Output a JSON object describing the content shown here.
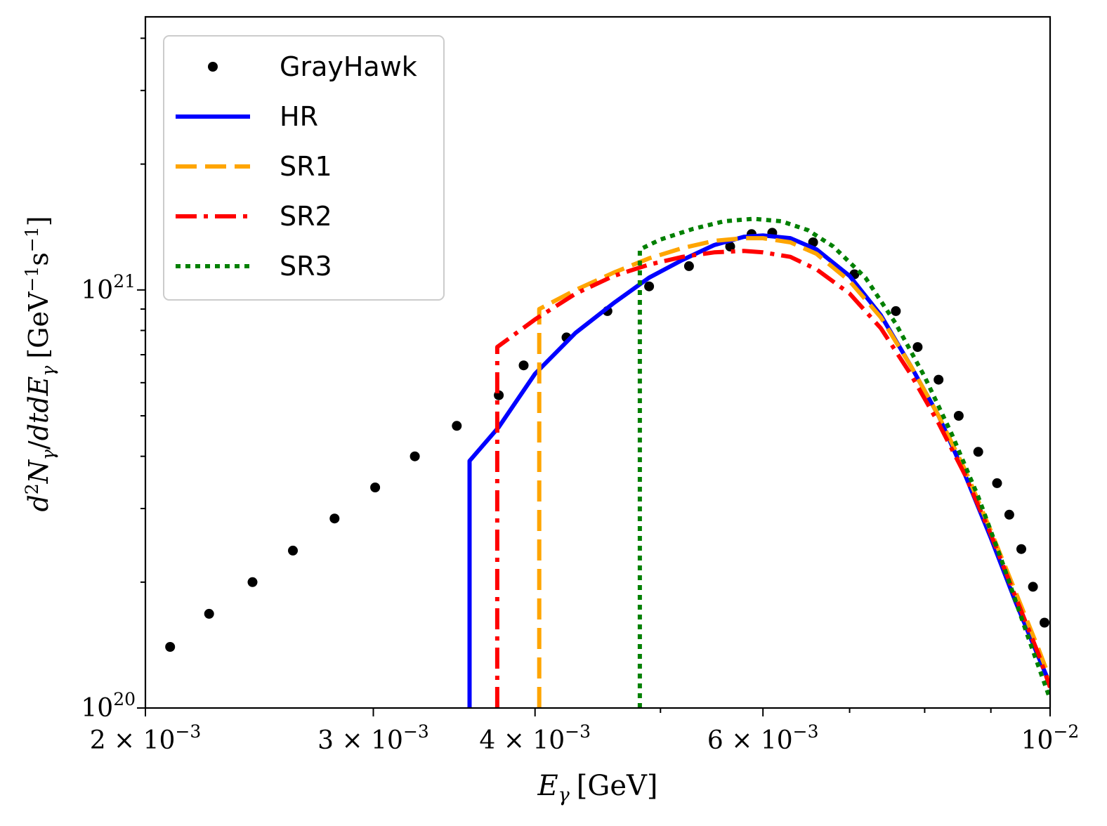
{
  "chart_data": {
    "type": "line",
    "title": "",
    "xlabel": {
      "symbol": "E",
      "sub": "γ",
      "unit": "[GeV]"
    },
    "ylabel": {
      "d": "d",
      "sup": "2",
      "N": "N",
      "sub": "γ",
      "slash": "/",
      "dt": "dtdE",
      "subE": "γ",
      "unitA": "[GeV",
      "supA": "−1",
      "unitB": "s",
      "supB": "−1",
      "close": "]"
    },
    "x_scale": "log",
    "y_scale": "log",
    "xlim": [
      0.002,
      0.01
    ],
    "ylim": [
      1e+20,
      4.5e+21
    ],
    "grid": false,
    "legend_position": "top-left",
    "xticks": [
      {
        "value": 0.002,
        "mant": "2 × 10",
        "exp": "−3"
      },
      {
        "value": 0.003,
        "mant": "3 × 10",
        "exp": "−3"
      },
      {
        "value": 0.004,
        "mant": "4 × 10",
        "exp": "−3"
      },
      {
        "value": 0.006,
        "mant": "6 × 10",
        "exp": "−3"
      },
      {
        "value": 0.01,
        "mant": "10",
        "exp": "−2"
      }
    ],
    "yticks": [
      {
        "value": 1e+20,
        "mant": "10",
        "exp": "20"
      },
      {
        "value": 1e+21,
        "mant": "10",
        "exp": "21"
      }
    ],
    "series": [
      {
        "name": "GrayHawk",
        "style": "points",
        "color": "#000000",
        "x": [
          0.00209,
          0.00224,
          0.00242,
          0.0026,
          0.0028,
          0.00301,
          0.00323,
          0.00348,
          0.00375,
          0.00392,
          0.00423,
          0.00455,
          0.0049,
          0.00526,
          0.00566,
          0.00588,
          0.0061,
          0.00656,
          0.00706,
          0.0076,
          0.0079,
          0.0082,
          0.0085,
          0.0088,
          0.0091,
          0.0093,
          0.0095,
          0.0097,
          0.0099
        ],
        "y": [
          1.4e+20,
          1.68e+20,
          2e+20,
          2.38e+20,
          2.84e+20,
          3.37e+20,
          4e+20,
          4.73e+20,
          5.6e+20,
          6.6e+20,
          7.7e+20,
          8.9e+20,
          1.02e+21,
          1.14e+21,
          1.27e+21,
          1.36e+21,
          1.37e+21,
          1.3e+21,
          1.09e+21,
          8.9e+20,
          7.3e+20,
          6.1e+20,
          5e+20,
          4.1e+20,
          3.45e+20,
          2.9e+20,
          2.4e+20,
          1.95e+20,
          1.6e+20
        ]
      },
      {
        "name": "HR",
        "style": "solid",
        "color": "#0000ff",
        "x": [
          0.00356,
          0.00356,
          0.00375,
          0.004,
          0.0043,
          0.0046,
          0.0049,
          0.0052,
          0.0055,
          0.0058,
          0.006,
          0.0063,
          0.0066,
          0.007,
          0.0074,
          0.0078,
          0.0082,
          0.0086,
          0.009,
          0.0094,
          0.0098,
          0.01
        ],
        "y": [
          1e+20,
          3.9e+20,
          4.7e+20,
          6.3e+20,
          7.9e+20,
          9.3e+20,
          1.07e+21,
          1.18e+21,
          1.28e+21,
          1.34e+21,
          1.35e+21,
          1.33e+21,
          1.25e+21,
          1.08e+21,
          8.7e+20,
          6.6e+20,
          5e+20,
          3.6e+20,
          2.55e+20,
          1.8e+20,
          1.32e+20,
          1.14e+20
        ]
      },
      {
        "name": "SR1",
        "style": "dashed",
        "color": "#ffa500",
        "x": [
          0.00403,
          0.00403,
          0.0043,
          0.0046,
          0.0049,
          0.0052,
          0.0055,
          0.0058,
          0.006,
          0.0063,
          0.0066,
          0.007,
          0.0074,
          0.0078,
          0.0082,
          0.0086,
          0.009,
          0.0094,
          0.0098,
          0.01
        ],
        "y": [
          1e+20,
          9e+20,
          1e+21,
          1.1e+21,
          1.19e+21,
          1.26e+21,
          1.31e+21,
          1.33e+21,
          1.33e+21,
          1.3e+21,
          1.22e+21,
          1.05e+21,
          8.6e+20,
          6.6e+20,
          5e+20,
          3.7e+20,
          2.65e+20,
          1.9e+20,
          1.38e+20,
          1.17e+20
        ]
      },
      {
        "name": "SR2",
        "style": "dashdot",
        "color": "#ff0000",
        "x": [
          0.00374,
          0.00374,
          0.004,
          0.0043,
          0.0046,
          0.0049,
          0.0052,
          0.0055,
          0.0058,
          0.006,
          0.0063,
          0.0066,
          0.007,
          0.0074,
          0.0078,
          0.0082,
          0.0086,
          0.009,
          0.0094,
          0.0098,
          0.01
        ],
        "y": [
          1e+20,
          7.3e+20,
          8.5e+20,
          9.8e+20,
          1.08e+21,
          1.15e+21,
          1.2e+21,
          1.23e+21,
          1.24e+21,
          1.23e+21,
          1.2e+21,
          1.12e+21,
          9.8e+20,
          8.1e+20,
          6.3e+20,
          4.8e+20,
          3.6e+20,
          2.6e+20,
          1.85e+20,
          1.34e+20,
          1.12e+20
        ]
      },
      {
        "name": "SR3",
        "style": "dotted",
        "color": "#008000",
        "x": [
          0.00482,
          0.00482,
          0.005,
          0.0053,
          0.0056,
          0.0059,
          0.0062,
          0.0065,
          0.0068,
          0.0072,
          0.0076,
          0.008,
          0.0084,
          0.0088,
          0.0092,
          0.0096,
          0.01
        ],
        "y": [
          1e+20,
          1.25e+21,
          1.32e+21,
          1.4e+21,
          1.46e+21,
          1.48e+21,
          1.46e+21,
          1.39e+21,
          1.27e+21,
          1.07e+21,
          8.3e+20,
          6.2e+20,
          4.5e+20,
          3.2e+20,
          2.2e+20,
          1.5e+20,
          1.05e+20
        ]
      }
    ]
  }
}
